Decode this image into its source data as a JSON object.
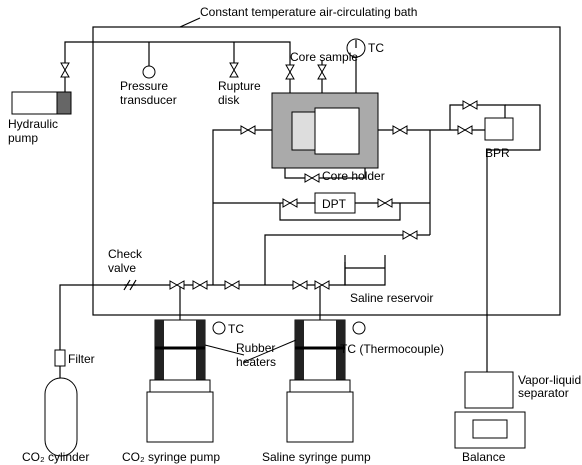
{
  "title": "Constant temperature air-circulating bath",
  "labels": {
    "core_sample": "Core sample",
    "tc_core": "TC",
    "pressure_transducer": [
      "Pressure",
      "transducer"
    ],
    "rupture_disk": [
      "Rupture",
      "disk"
    ],
    "hydraulic_pump": [
      "Hydraulic",
      "pump"
    ],
    "core_holder": "Core holder",
    "bpr": "BPR",
    "dpt": "DPT",
    "check_valve": [
      "Check",
      "valve"
    ],
    "saline_reservoir": "Saline reservoir",
    "filter": "Filter",
    "tc_pump": "TC",
    "rubber_heaters": [
      "Rubber",
      "heaters"
    ],
    "tc_thermocouple": "TC (Thermocouple)",
    "vapor_liquid_separator": [
      "Vapor-liquid",
      "separator"
    ],
    "co2_cylinder": "CO₂ cylinder",
    "co2_syringe_pump": "CO₂ syringe pump",
    "saline_syringe_pump": "Saline syringe pump",
    "balance": "Balance"
  }
}
